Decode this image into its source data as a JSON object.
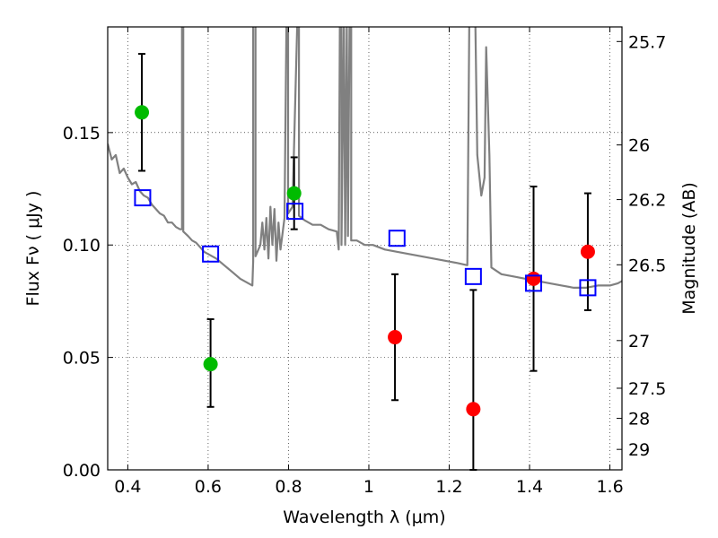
{
  "chart_data": {
    "type": "scatter",
    "xlabel": "Wavelength  λ (μm)",
    "ylabel": "Flux  Fν  ( μJy )",
    "ylabel_right": "Magnitude (AB)",
    "xlim": [
      0.35,
      1.63
    ],
    "ylim": [
      0.0,
      0.197
    ],
    "grid": true,
    "x_ticks": [
      0.4,
      0.6,
      0.8,
      1.0,
      1.2,
      1.4,
      1.6
    ],
    "x_tick_labels": [
      "0.4",
      "0.6",
      "0.8",
      "1",
      "1.2",
      "1.4",
      "1.6"
    ],
    "y_ticks": [
      0.0,
      0.05,
      0.1,
      0.15
    ],
    "y_tick_labels": [
      "0.00",
      "0.05",
      "0.10",
      "0.15"
    ],
    "right_ticks": [
      {
        "label": "25.7",
        "flux": 0.1905
      },
      {
        "label": "26",
        "flux": 0.1445
      },
      {
        "label": "26.2",
        "flux": 0.1202
      },
      {
        "label": "26.5",
        "flux": 0.0912
      },
      {
        "label": "27",
        "flux": 0.0575
      },
      {
        "label": "27.5",
        "flux": 0.0363
      },
      {
        "label": "28",
        "flux": 0.0229
      },
      {
        "label": "29",
        "flux": 0.0091
      }
    ],
    "series": [
      {
        "marker": "circle",
        "color": "#00bb00",
        "points": [
          {
            "x": 0.435,
            "y": 0.159,
            "yerr_low": 0.133,
            "yerr_high": 0.185
          },
          {
            "x": 0.606,
            "y": 0.047,
            "yerr_low": 0.028,
            "yerr_high": 0.067
          },
          {
            "x": 0.814,
            "y": 0.123,
            "yerr_low": 0.107,
            "yerr_high": 0.139
          }
        ]
      },
      {
        "marker": "circle",
        "color": "#ff0000",
        "points": [
          {
            "x": 1.065,
            "y": 0.059,
            "yerr_low": 0.031,
            "yerr_high": 0.087
          },
          {
            "x": 1.26,
            "y": 0.027,
            "yerr_low": 0.0,
            "yerr_high": 0.08
          },
          {
            "x": 1.41,
            "y": 0.085,
            "yerr_low": 0.044,
            "yerr_high": 0.126
          },
          {
            "x": 1.545,
            "y": 0.097,
            "yerr_low": 0.071,
            "yerr_high": 0.123
          }
        ]
      },
      {
        "marker": "square-open",
        "color": "#0000ff",
        "points": [
          {
            "x": 0.437,
            "y": 0.121
          },
          {
            "x": 0.606,
            "y": 0.096
          },
          {
            "x": 0.816,
            "y": 0.115
          },
          {
            "x": 1.07,
            "y": 0.103
          },
          {
            "x": 1.26,
            "y": 0.086
          },
          {
            "x": 1.41,
            "y": 0.083
          },
          {
            "x": 1.545,
            "y": 0.081
          }
        ]
      },
      {
        "marker": "line",
        "color": "#808080",
        "points": [
          [
            0.35,
            0.145
          ],
          [
            0.36,
            0.138
          ],
          [
            0.37,
            0.14
          ],
          [
            0.38,
            0.132
          ],
          [
            0.39,
            0.134
          ],
          [
            0.4,
            0.13
          ],
          [
            0.41,
            0.127
          ],
          [
            0.42,
            0.128
          ],
          [
            0.43,
            0.124
          ],
          [
            0.44,
            0.122
          ],
          [
            0.45,
            0.121
          ],
          [
            0.46,
            0.118
          ],
          [
            0.47,
            0.116
          ],
          [
            0.48,
            0.114
          ],
          [
            0.49,
            0.113
          ],
          [
            0.5,
            0.11
          ],
          [
            0.51,
            0.11
          ],
          [
            0.52,
            0.108
          ],
          [
            0.53,
            0.107
          ],
          [
            0.535,
            0.107
          ],
          [
            0.535,
            0.2
          ],
          [
            0.538,
            0.2
          ],
          [
            0.538,
            0.106
          ],
          [
            0.55,
            0.104
          ],
          [
            0.56,
            0.102
          ],
          [
            0.57,
            0.101
          ],
          [
            0.58,
            0.099
          ],
          [
            0.59,
            0.097
          ],
          [
            0.6,
            0.096
          ],
          [
            0.62,
            0.094
          ],
          [
            0.64,
            0.091
          ],
          [
            0.66,
            0.088
          ],
          [
            0.68,
            0.085
          ],
          [
            0.7,
            0.083
          ],
          [
            0.71,
            0.082
          ],
          [
            0.712,
            0.093
          ],
          [
            0.712,
            0.2
          ],
          [
            0.718,
            0.2
          ],
          [
            0.718,
            0.095
          ],
          [
            0.73,
            0.1
          ],
          [
            0.735,
            0.11
          ],
          [
            0.74,
            0.098
          ],
          [
            0.745,
            0.112
          ],
          [
            0.75,
            0.094
          ],
          [
            0.755,
            0.117
          ],
          [
            0.76,
            0.1
          ],
          [
            0.765,
            0.116
          ],
          [
            0.77,
            0.093
          ],
          [
            0.775,
            0.11
          ],
          [
            0.78,
            0.098
          ],
          [
            0.79,
            0.112
          ],
          [
            0.795,
            0.2
          ],
          [
            0.799,
            0.2
          ],
          [
            0.799,
            0.114
          ],
          [
            0.81,
            0.117
          ],
          [
            0.822,
            0.2
          ],
          [
            0.826,
            0.2
          ],
          [
            0.826,
            0.113
          ],
          [
            0.84,
            0.111
          ],
          [
            0.86,
            0.109
          ],
          [
            0.88,
            0.109
          ],
          [
            0.9,
            0.107
          ],
          [
            0.92,
            0.106
          ],
          [
            0.925,
            0.098
          ],
          [
            0.928,
            0.2
          ],
          [
            0.932,
            0.2
          ],
          [
            0.932,
            0.1
          ],
          [
            0.938,
            0.2
          ],
          [
            0.941,
            0.1
          ],
          [
            0.945,
            0.2
          ],
          [
            0.948,
            0.104
          ],
          [
            0.952,
            0.2
          ],
          [
            0.956,
            0.2
          ],
          [
            0.956,
            0.102
          ],
          [
            0.97,
            0.102
          ],
          [
            0.99,
            0.1
          ],
          [
            1.01,
            0.1
          ],
          [
            1.04,
            0.098
          ],
          [
            1.07,
            0.097
          ],
          [
            1.1,
            0.096
          ],
          [
            1.13,
            0.095
          ],
          [
            1.16,
            0.094
          ],
          [
            1.19,
            0.093
          ],
          [
            1.22,
            0.092
          ],
          [
            1.245,
            0.091
          ],
          [
            1.25,
            0.2
          ],
          [
            1.265,
            0.2
          ],
          [
            1.27,
            0.14
          ],
          [
            1.28,
            0.122
          ],
          [
            1.288,
            0.13
          ],
          [
            1.292,
            0.188
          ],
          [
            1.3,
            0.14
          ],
          [
            1.305,
            0.09
          ],
          [
            1.33,
            0.087
          ],
          [
            1.36,
            0.086
          ],
          [
            1.39,
            0.085
          ],
          [
            1.42,
            0.084
          ],
          [
            1.45,
            0.083
          ],
          [
            1.48,
            0.082
          ],
          [
            1.51,
            0.081
          ],
          [
            1.54,
            0.081
          ],
          [
            1.57,
            0.082
          ],
          [
            1.6,
            0.082
          ],
          [
            1.62,
            0.083
          ],
          [
            1.63,
            0.084
          ]
        ]
      }
    ]
  }
}
